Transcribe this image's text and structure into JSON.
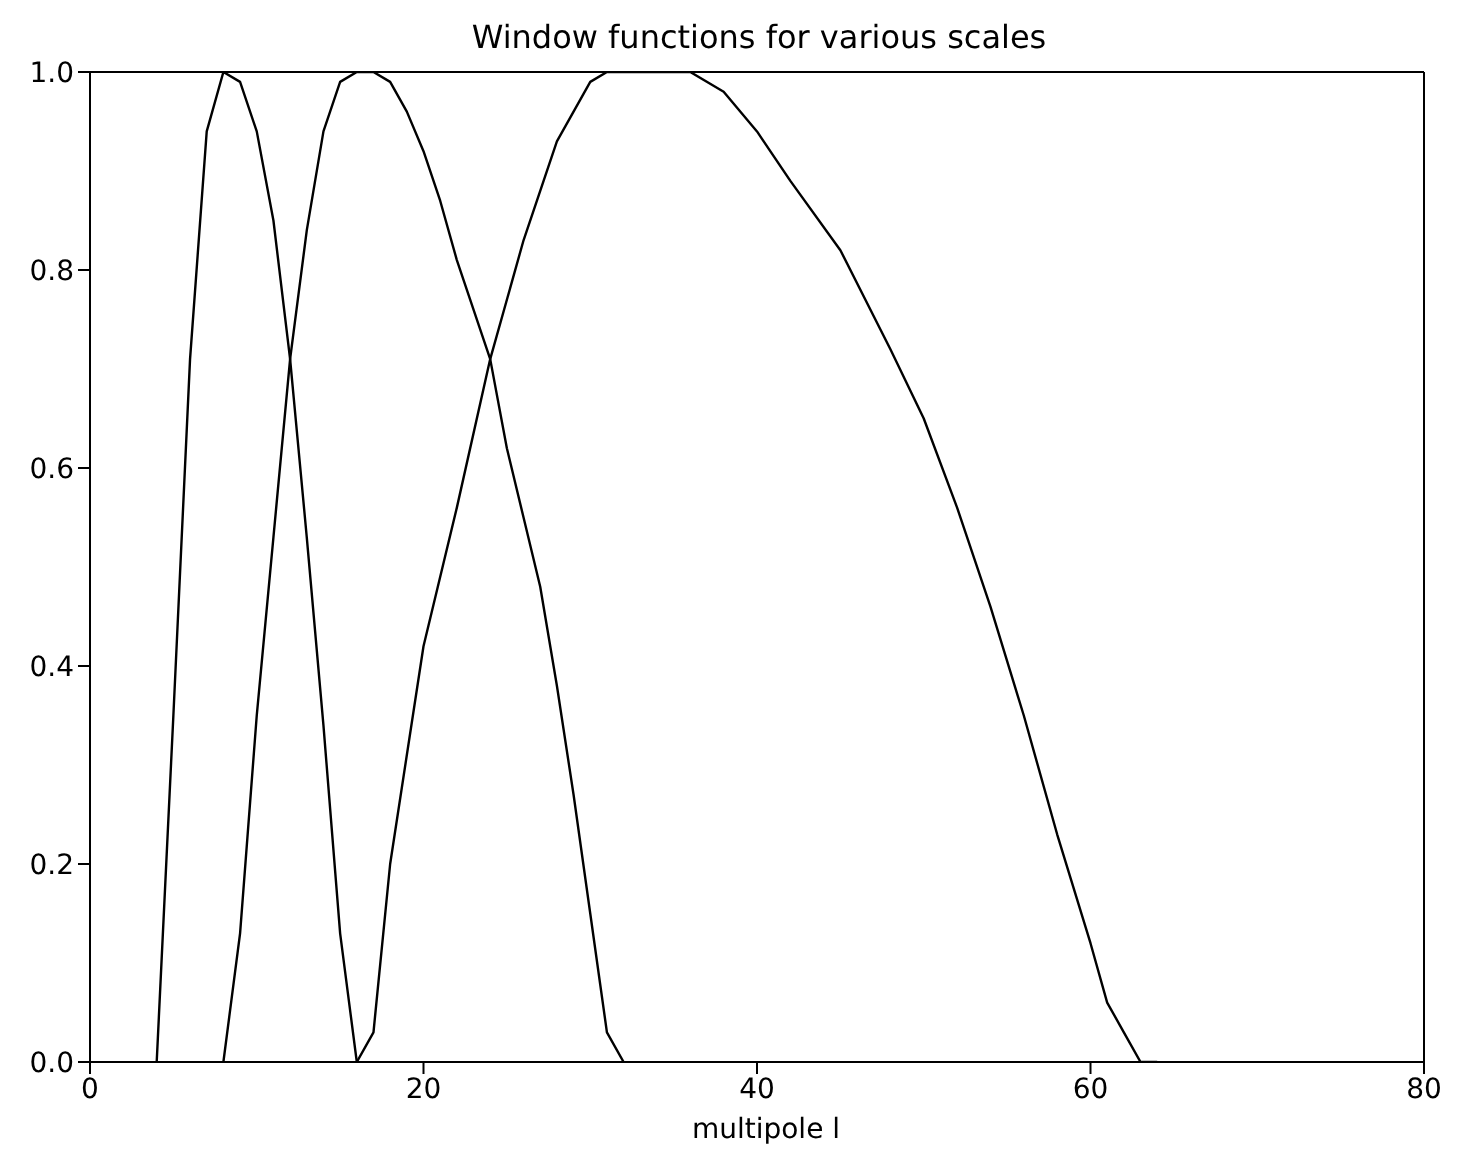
{
  "chart_data": {
    "type": "line",
    "title": "Window functions for various scales",
    "xlabel": "multipole l",
    "xlim": [
      0,
      80
    ],
    "xticks": [
      0,
      20,
      40,
      60,
      80
    ],
    "ylim": [
      0,
      1.0
    ],
    "yticks": [
      {
        "value": 0,
        "label": "0.0"
      },
      {
        "value": 0.2,
        "label": "0.2"
      },
      {
        "value": 0.4,
        "label": "0.4"
      },
      {
        "value": 0.6,
        "label": "0.6"
      },
      {
        "value": 0.8,
        "label": "0.8"
      },
      {
        "value": 1.0,
        "label": "1.0"
      }
    ],
    "marker": "none",
    "line_style": "solid",
    "series": [
      {
        "color": "#000000",
        "x": [
          4,
          5,
          6,
          7,
          8,
          9,
          10,
          11,
          12,
          13,
          14,
          15,
          16
        ],
        "values": [
          0,
          0.35,
          0.71,
          0.94,
          1.0,
          0.99,
          0.94,
          0.85,
          0.71,
          0.53,
          0.34,
          0.13,
          0
        ]
      },
      {
        "color": "#000000",
        "x": [
          8,
          9,
          10,
          11,
          12,
          13,
          14,
          15,
          16,
          17,
          18,
          19,
          20,
          21,
          22,
          23,
          24,
          25,
          26,
          27,
          28,
          29,
          30,
          31,
          32
        ],
        "values": [
          0,
          0.13,
          0.35,
          0.53,
          0.71,
          0.84,
          0.94,
          0.99,
          1.0,
          1.0,
          0.99,
          0.96,
          0.92,
          0.87,
          0.81,
          0.76,
          0.71,
          0.62,
          0.55,
          0.48,
          0.38,
          0.27,
          0.15,
          0.03,
          0
        ]
      },
      {
        "color": "#000000",
        "x": [
          16,
          17,
          18,
          20,
          22,
          24,
          26,
          28,
          30,
          31,
          32,
          34,
          36,
          38,
          40,
          42,
          45,
          48,
          50,
          52,
          54,
          56,
          58,
          60,
          61,
          62,
          63,
          64
        ],
        "values": [
          0,
          0.03,
          0.2,
          0.42,
          0.56,
          0.71,
          0.83,
          0.93,
          0.99,
          1.0,
          1.0,
          1.0,
          1.0,
          0.98,
          0.94,
          0.89,
          0.82,
          0.72,
          0.65,
          0.56,
          0.46,
          0.35,
          0.23,
          0.12,
          0.06,
          0.03,
          0,
          0
        ]
      }
    ]
  }
}
